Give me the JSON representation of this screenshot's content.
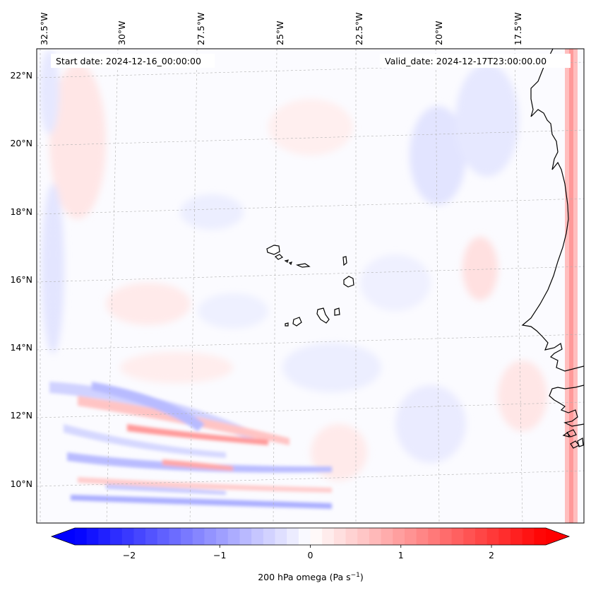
{
  "map": {
    "start_date_label": "Start date: 2024-12-16_00:00:00",
    "valid_date_label": "Valid_date: 2024-12-17T23:00:00.00",
    "lon_ticks": [
      "32.5°W",
      "30°W",
      "27.5°W",
      "25°W",
      "22.5°W",
      "20°W",
      "17.5°W"
    ],
    "lat_ticks": [
      "22°N",
      "20°N",
      "18°N",
      "16°N",
      "14°N",
      "12°N",
      "10°N"
    ],
    "field": "200 hPa omega",
    "units": "Pa s",
    "units_exponent": "−1",
    "colormap": "bwr",
    "colors": {
      "negative": "#0000ff",
      "zero": "#ffffff",
      "positive": "#ff0000",
      "coast": "#000000",
      "grid": "#b0b0b0"
    },
    "features": [
      "Cabo Verde islands",
      "West African coast (Senegal, Gambia, Guinea-Bissau)"
    ]
  },
  "colorbar": {
    "min": -2.6,
    "max": 2.6,
    "extend": "both",
    "ticks": [
      "−2",
      "−1",
      "0",
      "1",
      "2"
    ],
    "tick_values": [
      -2,
      -1,
      0,
      1,
      2
    ],
    "label_prefix": "200 hPa omega (Pa s",
    "label_exp": "−1",
    "label_suffix": ")"
  }
}
